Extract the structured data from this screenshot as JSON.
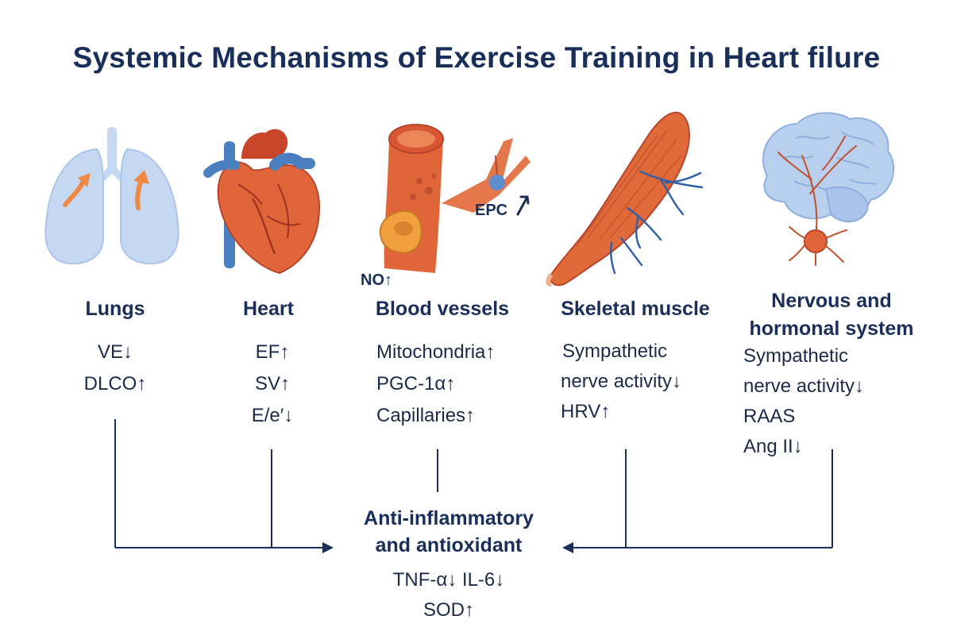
{
  "title": "Systemic Mechanisms of Exercise Training in Heart filure",
  "organs": [
    {
      "label": "Lungs",
      "effects": [
        "VE↓",
        "DLCO↑"
      ]
    },
    {
      "label": "Heart",
      "effects": [
        "EF↑",
        "SV↑",
        "E/e′↓"
      ]
    },
    {
      "label": "Blood vessels",
      "effects": [
        "Mitochondria↑",
        "PGC-1α↑",
        "Capillaries↑"
      ]
    },
    {
      "label": "Skeletal muscle",
      "effects": [
        "Sympathetic",
        "nerve activity↓",
        "HRV↑"
      ]
    },
    {
      "label_lines": [
        "Nervous and",
        "hormonal system"
      ],
      "effects": [
        "Sympathetic",
        "nerve activity↓",
        "RAAS",
        "Ang II↓"
      ]
    }
  ],
  "annotations": {
    "no": "NO↑",
    "epc": "EPC"
  },
  "center": {
    "title_lines": [
      "Anti-inflammatory",
      "and antioxidant"
    ],
    "effects": [
      "TNF-α↓ IL-6↓",
      "SOD↑"
    ]
  },
  "colors": {
    "title": "#1a2e5a",
    "organ_orange": "#e0663a",
    "vessel_blue": "#4a7fc0",
    "lung_blue": "#c4d9f1",
    "brain_blue": "#b9cfee",
    "connector": "#1a2e5a"
  }
}
